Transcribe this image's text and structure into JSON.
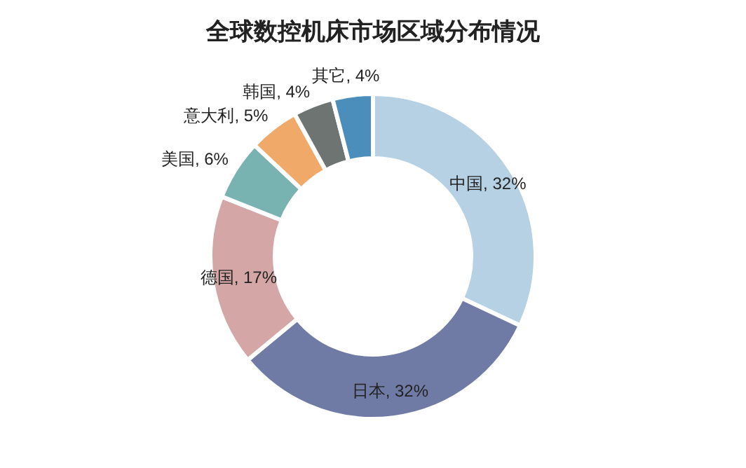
{
  "chart_data": {
    "type": "donut",
    "title": "全球数控机床市场区域分布情况",
    "categories": [
      "中国",
      "日本",
      "德国",
      "美国",
      "意大利",
      "韩国",
      "其它"
    ],
    "values": [
      32,
      32,
      17,
      6,
      5,
      4,
      4
    ],
    "colors": [
      "#b5d1e3",
      "#6f7ba5",
      "#d4a6a6",
      "#79b3b1",
      "#f1a96a",
      "#6d7471",
      "#4b8dbb"
    ],
    "value_labels": [
      ", 32%",
      ", 32%",
      ", 17%",
      ", 6%",
      ", 5%",
      ", 4%",
      ", 4%"
    ]
  }
}
